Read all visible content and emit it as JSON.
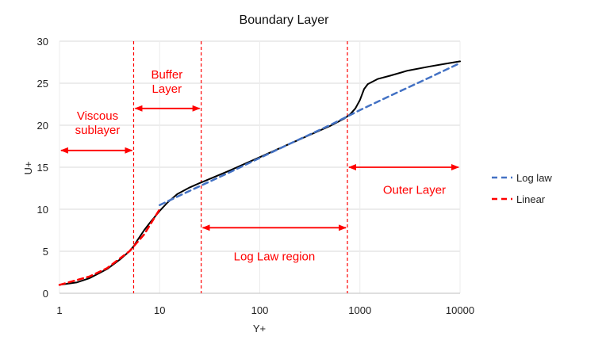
{
  "chart_data": {
    "type": "line",
    "title": "Boundary Layer",
    "xlabel": "Y+",
    "ylabel": "U+",
    "x_scale": "log",
    "xlim": [
      1,
      10000
    ],
    "ylim": [
      0,
      30
    ],
    "x_ticks": [
      1,
      10,
      100,
      1000,
      10000
    ],
    "x_tick_labels": [
      "1",
      "10",
      "100",
      "1000",
      "10000"
    ],
    "y_ticks": [
      0,
      5,
      10,
      15,
      20,
      25,
      30
    ],
    "y_tick_labels": [
      "0",
      "5",
      "10",
      "15",
      "20",
      "25",
      "30"
    ],
    "grid": "horizontal",
    "legend_position": "right",
    "accent_color": "#ff0000",
    "series": [
      {
        "name": "Log law",
        "style": "dashed",
        "color": "#4472c4",
        "x": [
          10,
          20,
          50,
          100,
          200,
          500,
          1000,
          2000,
          5000,
          10000
        ],
        "y": [
          10.5,
          12.2,
          14.4,
          16.1,
          17.8,
          20.0,
          21.8,
          23.5,
          25.7,
          27.4
        ]
      },
      {
        "name": "Linear",
        "style": "dashed",
        "color": "#ff0000",
        "x": [
          1,
          2,
          3,
          5,
          7,
          10
        ],
        "y": [
          1.0,
          2.0,
          3.0,
          5.0,
          7.0,
          10.0
        ]
      },
      {
        "name": "",
        "style": "solid",
        "color": "#000000",
        "x": [
          1,
          1.5,
          2,
          3,
          4,
          5,
          5.5,
          6,
          7,
          8,
          10,
          12,
          15,
          20,
          25,
          30,
          50,
          100,
          200,
          500,
          700,
          800,
          900,
          1000,
          1100,
          1200,
          1500,
          2000,
          3000,
          5000,
          7000,
          10000
        ],
        "y": [
          1.0,
          1.3,
          1.8,
          2.9,
          4.0,
          5.0,
          5.6,
          6.3,
          7.5,
          8.4,
          9.8,
          10.8,
          11.8,
          12.6,
          13.1,
          13.5,
          14.6,
          16.2,
          17.8,
          19.9,
          20.8,
          21.3,
          22.0,
          23.0,
          24.3,
          24.9,
          25.5,
          25.9,
          26.5,
          27.0,
          27.3,
          27.6
        ]
      }
    ],
    "region_markers": [
      {
        "name": "viscous-sublayer-boundary",
        "x": 5.5
      },
      {
        "name": "buffer-layer-boundary",
        "x": 26
      },
      {
        "name": "outer-layer-boundary",
        "x": 750
      }
    ],
    "annotations": [
      {
        "name": "viscous-sublayer",
        "lines": [
          "Viscous",
          "sublayer"
        ],
        "x": 2.4,
        "y": 20.3,
        "arrow": {
          "from": [
            1,
            17
          ],
          "to": [
            5.5,
            17
          ]
        }
      },
      {
        "name": "buffer-layer",
        "lines": [
          "Buffer",
          "Layer"
        ],
        "x": 11.8,
        "y": 25.2,
        "arrow": {
          "from": [
            5.5,
            22
          ],
          "to": [
            26,
            22
          ]
        }
      },
      {
        "name": "log-law-region",
        "lines": [
          "Log Law region"
        ],
        "x": 140,
        "y": 4.4,
        "arrow": {
          "from": [
            26,
            7.8
          ],
          "to": [
            750,
            7.8
          ]
        }
      },
      {
        "name": "outer-layer",
        "lines": [
          "Outer Layer"
        ],
        "x": 3500,
        "y": 12.3,
        "arrow": {
          "from": [
            750,
            15
          ],
          "to": [
            10000,
            15
          ]
        }
      }
    ]
  }
}
